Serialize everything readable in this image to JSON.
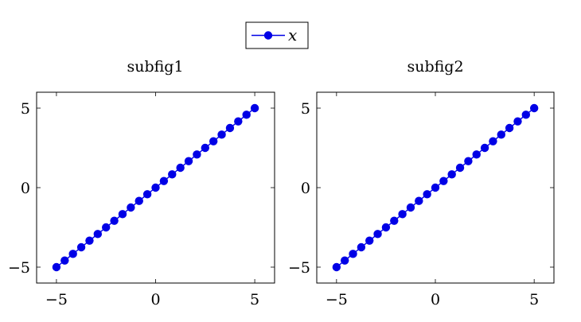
{
  "legend": {
    "entry": "x",
    "marker_color": "#0000e6",
    "line_color": "#0000e6",
    "placement": "top-center"
  },
  "chart_data": [
    {
      "type": "line",
      "title": "subfig1",
      "xlabel": "",
      "ylabel": "",
      "xlim": [
        -6,
        6
      ],
      "ylim": [
        -6,
        6
      ],
      "x_ticks": [
        -5,
        0,
        5
      ],
      "y_ticks": [
        -5,
        0,
        5
      ],
      "x_tick_labels": [
        "−5",
        "0",
        "5"
      ],
      "y_tick_labels": [
        "−5",
        "0",
        "5"
      ],
      "grid": false,
      "series": [
        {
          "name": "x",
          "color": "#0000e6",
          "marker": "circle",
          "x": [
            -5,
            -4.583,
            -4.167,
            -3.75,
            -3.333,
            -2.917,
            -2.5,
            -2.083,
            -1.667,
            -1.25,
            -0.833,
            -0.417,
            0,
            0.417,
            0.833,
            1.25,
            1.667,
            2.083,
            2.5,
            2.917,
            3.333,
            3.75,
            4.167,
            4.583,
            5
          ],
          "y": [
            -5,
            -4.583,
            -4.167,
            -3.75,
            -3.333,
            -2.917,
            -2.5,
            -2.083,
            -1.667,
            -1.25,
            -0.833,
            -0.417,
            0,
            0.417,
            0.833,
            1.25,
            1.667,
            2.083,
            2.5,
            2.917,
            3.333,
            3.75,
            4.167,
            4.583,
            5
          ]
        }
      ]
    },
    {
      "type": "line",
      "title": "subfig2",
      "xlabel": "",
      "ylabel": "",
      "xlim": [
        -6,
        6
      ],
      "ylim": [
        -6,
        6
      ],
      "x_ticks": [
        -5,
        0,
        5
      ],
      "y_ticks": [
        -5,
        0,
        5
      ],
      "x_tick_labels": [
        "−5",
        "0",
        "5"
      ],
      "y_tick_labels": [
        "−5",
        "0",
        "5"
      ],
      "grid": false,
      "series": [
        {
          "name": "x",
          "color": "#0000e6",
          "marker": "circle",
          "x": [
            -5,
            -4.583,
            -4.167,
            -3.75,
            -3.333,
            -2.917,
            -2.5,
            -2.083,
            -1.667,
            -1.25,
            -0.833,
            -0.417,
            0,
            0.417,
            0.833,
            1.25,
            1.667,
            2.083,
            2.5,
            2.917,
            3.333,
            3.75,
            4.167,
            4.583,
            5
          ],
          "y": [
            -5,
            -4.583,
            -4.167,
            -3.75,
            -3.333,
            -2.917,
            -2.5,
            -2.083,
            -1.667,
            -1.25,
            -0.833,
            -0.417,
            0,
            0.417,
            0.833,
            1.25,
            1.667,
            2.083,
            2.5,
            2.917,
            3.333,
            3.75,
            4.167,
            4.583,
            5
          ]
        }
      ]
    }
  ]
}
